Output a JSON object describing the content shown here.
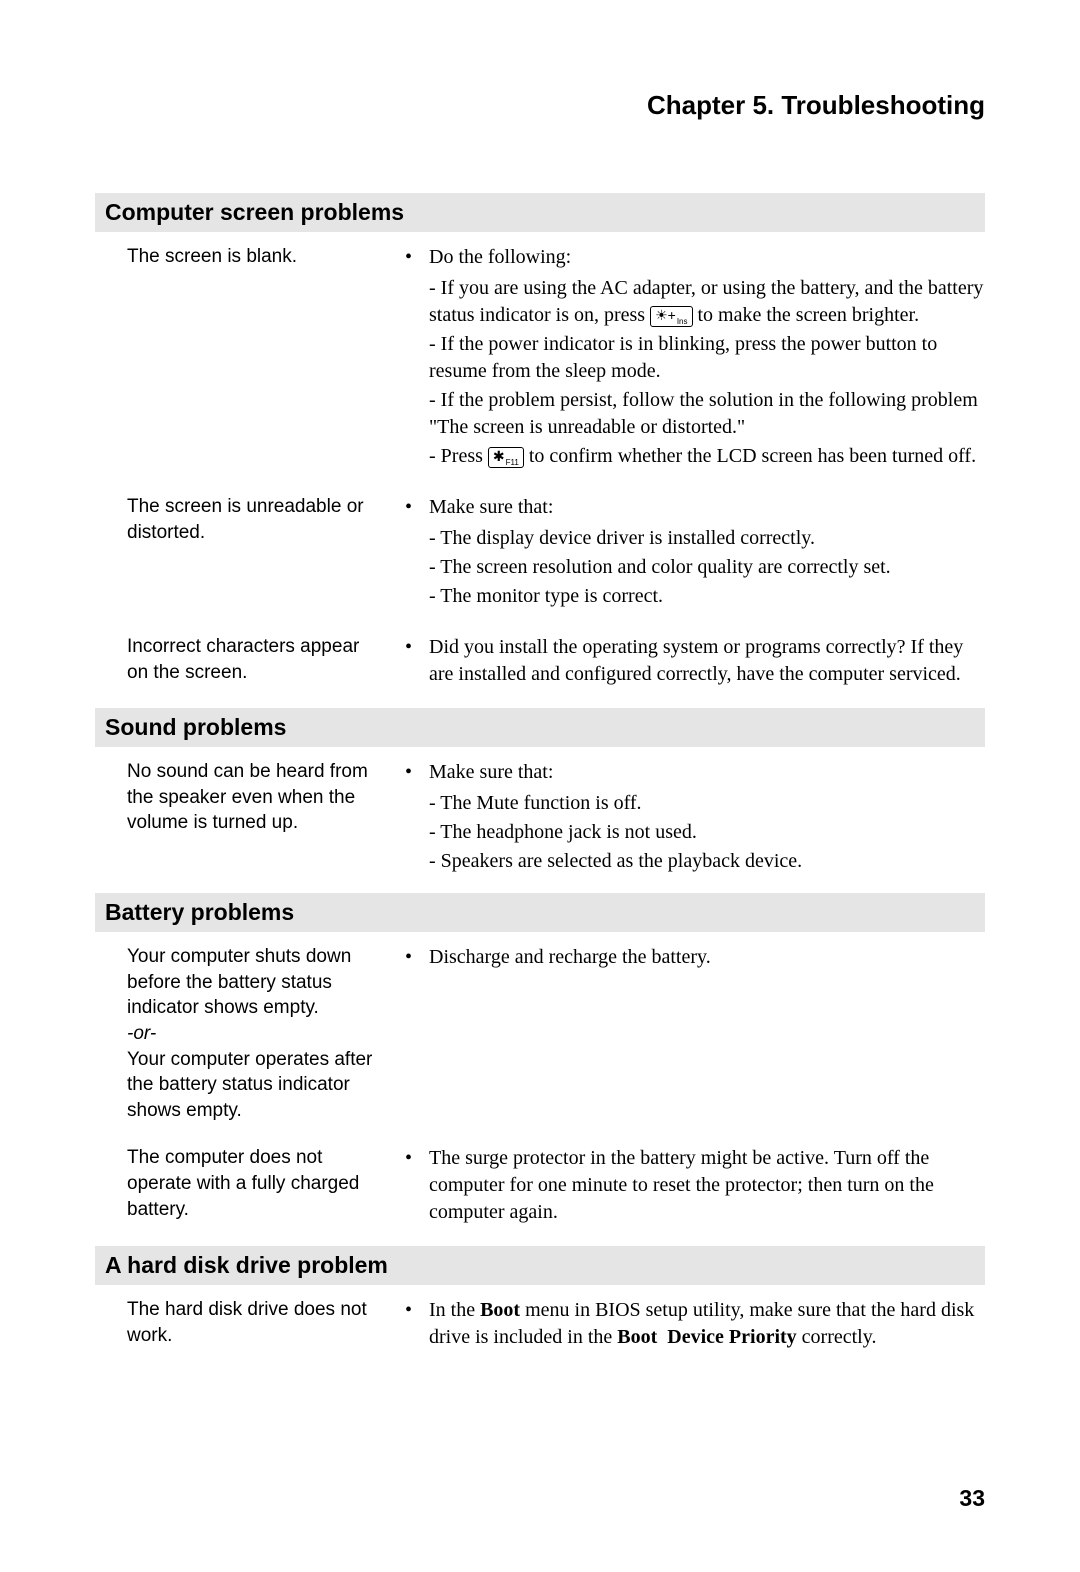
{
  "chapter_title": "Chapter 5. Troubleshooting",
  "page_number": "33",
  "sections": [
    {
      "heading": "Computer screen problems",
      "rows": [
        {
          "problem": "The screen is blank.",
          "solution_lead": "Do the following:",
          "subs": [
            "- If you are using the AC adapter, or using the battery, and the battery status indicator is on, press [KEY1] to make the screen brighter.",
            "- If the power indicator is in blinking, press the power button to resume from the sleep mode.",
            "- If the problem persist, follow the solution in the following problem \"The screen is unreadable or distorted.\"",
            "- Press [KEY2] to confirm whether the LCD screen has been turned off."
          ],
          "key1": {
            "sym": "☀+",
            "sub": "Ins"
          },
          "key2": {
            "sym": "✱",
            "sub": "F11"
          }
        },
        {
          "problem": "The screen is unreadable or distorted.",
          "solution_lead": "Make sure that:",
          "subs": [
            "- The display device driver is installed correctly.",
            "- The screen resolution and color quality are correctly set.",
            "- The monitor type is correct."
          ]
        },
        {
          "problem": "Incorrect characters appear on the screen.",
          "solution_lead": "Did you install the operating system or programs correctly? If they are installed and configured correctly, have the computer serviced."
        }
      ]
    },
    {
      "heading": "Sound problems",
      "rows": [
        {
          "problem": "No sound can be heard from the speaker even when the volume is turned up.",
          "solution_lead": "Make sure that:",
          "subs": [
            "- The Mute function is off.",
            "- The headphone jack is not used.",
            "- Speakers are selected as the playback device."
          ]
        }
      ]
    },
    {
      "heading": "Battery problems",
      "rows": [
        {
          "problem_html": "Your computer shuts down before the battery status indicator shows empty.<br><span class=\"italic\">-or-</span><br>Your computer operates after the battery status indicator shows empty.",
          "solution_lead": "Discharge and recharge the battery."
        },
        {
          "problem": "The computer does not operate with a fully charged battery.",
          "solution_lead": "The surge protector in the battery might be active. Turn off the computer for one minute to reset the protector; then turn on the computer again."
        }
      ]
    },
    {
      "heading": "A hard disk drive problem",
      "rows": [
        {
          "problem": "The hard disk drive does not work.",
          "solution_html": "In the <span class=\"bold\">Boot</span> menu in BIOS setup utility, make sure that the hard disk drive is included in the <span class=\"bold\">Boot&nbsp; Device Priority</span> correctly."
        }
      ]
    }
  ]
}
